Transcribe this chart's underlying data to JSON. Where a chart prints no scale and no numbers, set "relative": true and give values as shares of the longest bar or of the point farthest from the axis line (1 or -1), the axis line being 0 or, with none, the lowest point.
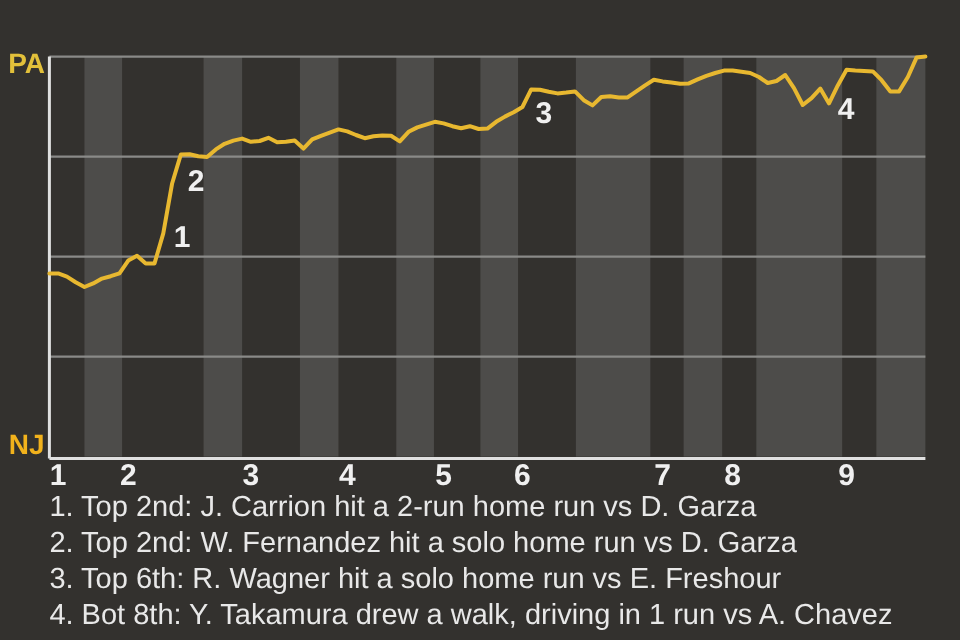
{
  "chart_data": {
    "type": "line",
    "relative": true,
    "categories": [
      null,
      "1",
      null,
      null,
      null,
      null,
      null,
      null,
      null,
      "2",
      null,
      null,
      null,
      null,
      null,
      null,
      null,
      null,
      null,
      null,
      null,
      null,
      null,
      "3",
      null,
      null,
      null,
      null,
      null,
      null,
      null,
      null,
      null,
      null,
      "4",
      null,
      null,
      null,
      null,
      null,
      null,
      null,
      null,
      null,
      null,
      "5",
      null,
      null,
      null,
      null,
      null,
      null,
      null,
      null,
      "6",
      null,
      null,
      null,
      null,
      null,
      null,
      null,
      null,
      null,
      null,
      null,
      null,
      null,
      null,
      null,
      "7",
      null,
      null,
      null,
      null,
      null,
      null,
      null,
      "8",
      null,
      null,
      null,
      null,
      null,
      null,
      null,
      null,
      null,
      null,
      null,
      null,
      "9",
      null,
      null,
      null,
      null,
      null,
      null,
      null,
      null,
      null
    ],
    "marker": "none",
    "line_style": "solid",
    "ref_lines": [
      {
        "axis": "y",
        "value": 0.25,
        "color": "#8a8a88"
      },
      {
        "axis": "y",
        "value": 0.5,
        "color": "#8a8a88"
      },
      {
        "axis": "y",
        "value": 0.75,
        "color": "#8a8a88"
      },
      {
        "axis": "y",
        "value": 1,
        "color": "#8a8a88"
      }
    ],
    "series": [
      {
        "color": "#e8b830",
        "values": [
          0.458,
          0.458,
          0.45,
          0.436,
          0.424,
          0.433,
          0.445,
          0.451,
          0.458,
          0.49,
          0.502,
          0.483,
          0.483,
          0.558,
          0.682,
          0.755,
          0.756,
          0.751,
          0.749,
          0.768,
          0.782,
          0.79,
          0.795,
          0.787,
          0.789,
          0.797,
          0.786,
          0.787,
          0.79,
          0.77,
          0.793,
          0.802,
          0.81,
          0.818,
          0.813,
          0.804,
          0.796,
          0.801,
          0.803,
          0.802,
          0.788,
          0.812,
          0.823,
          0.83,
          0.837,
          0.833,
          0.826,
          0.821,
          0.826,
          0.819,
          0.82,
          0.837,
          0.85,
          0.861,
          0.874,
          0.918,
          0.917,
          0.912,
          0.908,
          0.91,
          0.913,
          0.891,
          0.878,
          0.899,
          0.901,
          0.898,
          0.898,
          0.913,
          0.928,
          0.942,
          0.938,
          0.935,
          0.932,
          0.933,
          0.943,
          0.952,
          0.959,
          0.965,
          0.965,
          0.962,
          0.959,
          0.949,
          0.934,
          0.939,
          0.954,
          0.921,
          0.879,
          0.896,
          0.92,
          0.883,
          0.928,
          0.967,
          0.965,
          0.964,
          0.963,
          0.941,
          0.913,
          0.913,
          0.949,
          0.998,
          1
        ]
      }
    ],
    "annotations": [
      "PA",
      "NJ",
      "1",
      "2",
      "3",
      "4",
      "1. Top 2nd: J. Carrion hit a 2-run home run vs D. Garza",
      "2. Top 2nd: W. Fernandez hit a solo home run vs D. Garza",
      "3. Top 6th: R. Wagner hit a solo home run vs E. Freshour",
      "4. Bot 8th: Y. Takamura drew a walk, driving in 1 run vs A. Chavez"
    ]
  }
}
